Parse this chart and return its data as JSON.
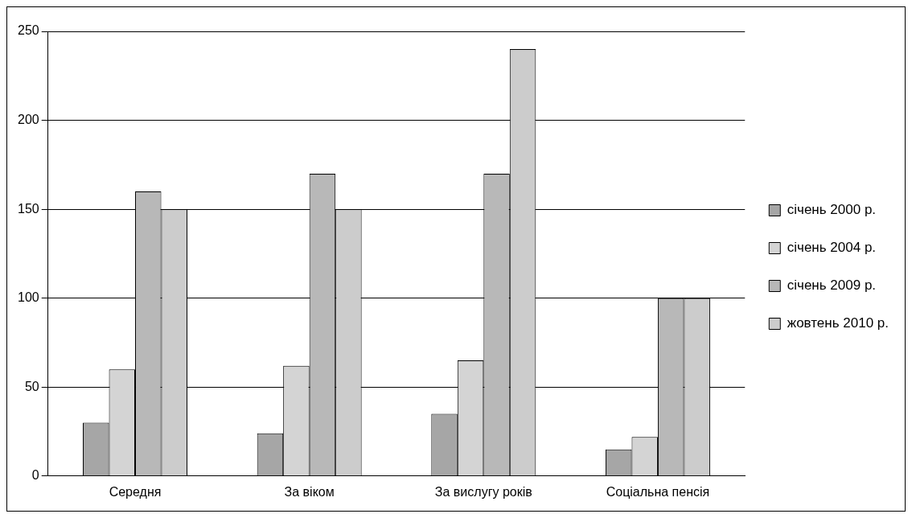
{
  "chart_data": {
    "type": "bar",
    "categories": [
      "Середня",
      "За віком",
      "За вислугу років",
      "Соціальна пенсія"
    ],
    "series": [
      {
        "name": "січень 2000 р.",
        "color": "#a6a6a6",
        "values": [
          30,
          24,
          35,
          15
        ]
      },
      {
        "name": "січень 2004 р.",
        "color": "#d4d4d4",
        "values": [
          60,
          62,
          65,
          22
        ]
      },
      {
        "name": "січень 2009 р.",
        "color": "#b8b8b8",
        "values": [
          160,
          170,
          170,
          100
        ]
      },
      {
        "name": "жовтень 2010 р.",
        "color": "#cccccc",
        "values": [
          150,
          150,
          240,
          100
        ]
      }
    ],
    "ylim": [
      0,
      250
    ],
    "yticks": [
      0,
      50,
      100,
      150,
      200,
      250
    ],
    "grid": "y",
    "legend": "right"
  }
}
